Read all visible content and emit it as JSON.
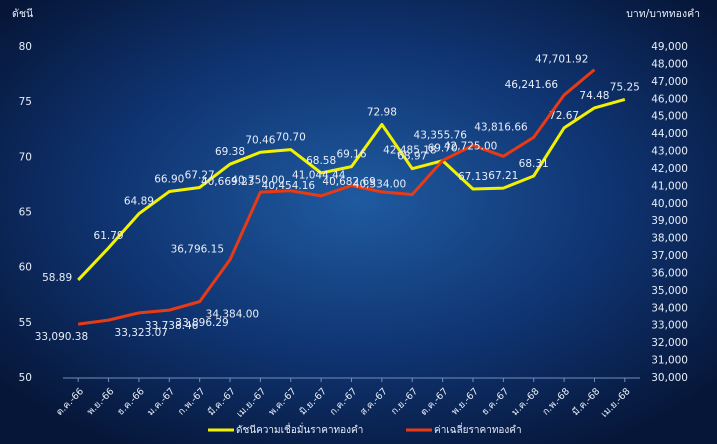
{
  "chart_data": {
    "type": "line",
    "y_label": "ดัชนี",
    "y2_label": "บาท/บาททองคำ",
    "categories": [
      "ต.ค.-66",
      "พ.ย.-66",
      "ธ.ค.-66",
      "ม.ค.-67",
      "ก.พ.-67",
      "มี.ค.-67",
      "เม.ย.-67",
      "พ.ค.-67",
      "มิ.ย.-67",
      "ก.ค.-67",
      "ส.ค.-67",
      "ก.ย.-67",
      "ต.ค.-67",
      "พ.ย.-67",
      "ธ.ค.-67",
      "ม.ค.-68",
      "ก.พ.-68",
      "มี.ค.-68",
      "เม.ย.-68"
    ],
    "series": [
      {
        "name": "ดัชนีความเชื่อมั่นราคาทองคำ",
        "color": "#f2f200",
        "axis": "y",
        "values": [
          58.89,
          61.79,
          64.89,
          66.9,
          67.27,
          69.38,
          70.46,
          70.7,
          68.58,
          69.16,
          72.98,
          68.97,
          69.7,
          67.13,
          67.21,
          68.31,
          72.67,
          74.48,
          75.25
        ],
        "value_labels": [
          "58.89",
          "61.79",
          "64.89",
          "66.90",
          "67.27",
          "69.38",
          "70.46",
          "70.70",
          "68.58",
          "69.16",
          "72.98",
          "68.97",
          "69.70",
          "67.13",
          "67.21",
          "68.31",
          "72.67",
          "74.48",
          "75.25"
        ]
      },
      {
        "name": "ค่าเฉลี่ยราคาทองคำ",
        "color": "#e83a14",
        "axis": "y2",
        "values": [
          33090.38,
          33323.07,
          33738.46,
          33896.29,
          34384,
          36796.15,
          40669.23,
          40750,
          40454.16,
          41044.44,
          40682.69,
          40534,
          42485.18,
          43355.76,
          42725,
          43816.66,
          46241.66,
          47701.92,
          null
        ],
        "value_labels": [
          "33,090.38",
          "33,323.07",
          "33,738.46",
          "33,896.29",
          "34,384.00",
          "36,796.15",
          "40,669.23",
          "40,750.00",
          "40,454.16",
          "41,044.44",
          "40,682.69",
          "40,534.00",
          "42,485.18",
          "43,355.76",
          "42,725.00",
          "43,816.66",
          "46,241.66",
          "47,701.92",
          null
        ]
      }
    ],
    "ylim": [
      50,
      80
    ],
    "yticks": [
      50,
      55,
      60,
      65,
      70,
      75,
      80
    ],
    "y2lim": [
      30000,
      49000
    ],
    "y2ticks": [
      {
        "value": 30000,
        "label": "30,000"
      },
      {
        "value": 31000,
        "label": "31,000"
      },
      {
        "value": 32000,
        "label": "32,000"
      },
      {
        "value": 33000,
        "label": "33,000"
      },
      {
        "value": 34000,
        "label": "34,000"
      },
      {
        "value": 35000,
        "label": "35,000"
      },
      {
        "value": 36000,
        "label": "36,000"
      },
      {
        "value": 37000,
        "label": "37,000"
      },
      {
        "value": 38000,
        "label": "38,000"
      },
      {
        "value": 39000,
        "label": "39,000"
      },
      {
        "value": 40000,
        "label": "40,000"
      },
      {
        "value": 41000,
        "label": "41,000"
      },
      {
        "value": 42000,
        "label": "42,000"
      },
      {
        "value": 43000,
        "label": "43,000"
      },
      {
        "value": 44000,
        "label": "44,000"
      },
      {
        "value": 45000,
        "label": "45,000"
      },
      {
        "value": 46000,
        "label": "46,000"
      },
      {
        "value": 47000,
        "label": "47,000"
      },
      {
        "value": 48000,
        "label": "48,000"
      },
      {
        "value": 49000,
        "label": "49,000"
      }
    ]
  }
}
